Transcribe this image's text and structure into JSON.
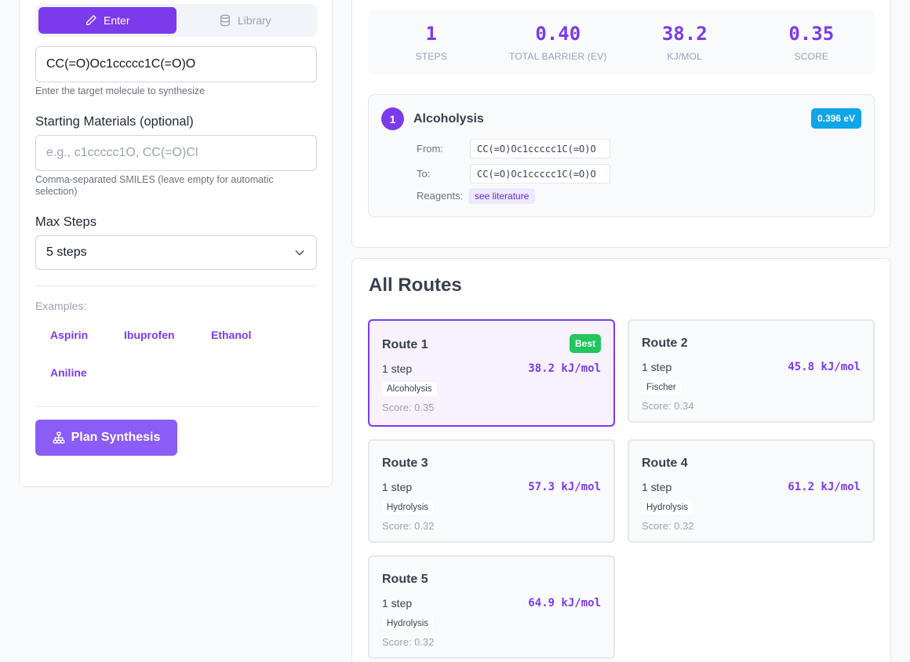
{
  "input_mode": {
    "enter_label": "Enter",
    "library_label": "Library"
  },
  "target": {
    "value": "CC(=O)Oc1ccccc1C(=O)O",
    "help": "Enter the target molecule to synthesize"
  },
  "starting": {
    "label": "Starting Materials (optional)",
    "placeholder": "e.g., c1ccccc1O, CC(=O)Cl",
    "help": "Comma-separated SMILES (leave empty for automatic selection)"
  },
  "max_steps": {
    "label": "Max Steps",
    "selected": "5 steps"
  },
  "examples": {
    "label": "Examples:",
    "items": [
      "Aspirin",
      "Ibuprofen",
      "Ethanol",
      "Aniline"
    ]
  },
  "plan_button": "Plan Synthesis",
  "summary": {
    "stats": [
      {
        "value": "1",
        "label": "STEPS"
      },
      {
        "value": "0.40",
        "label": "TOTAL BARRIER (EV)"
      },
      {
        "value": "38.2",
        "label": "KJ/MOL"
      },
      {
        "value": "0.35",
        "label": "SCORE"
      }
    ]
  },
  "step": {
    "number": "1",
    "name": "Alcoholysis",
    "energy": "0.396 eV",
    "from_label": "From:",
    "from_value": "CC(=O)Oc1ccccc1C(=O)O",
    "to_label": "To:",
    "to_value": "CC(=O)Oc1ccccc1C(=O)O",
    "reagents_label": "Reagents:",
    "reagents_value": "see literature"
  },
  "routes": {
    "title": "All Routes",
    "items": [
      {
        "name": "Route 1",
        "steps": "1 step",
        "energy": "38.2 kJ/mol",
        "tag": "Alcoholysis",
        "score": "Score: 0.35",
        "badge": "Best"
      },
      {
        "name": "Route 2",
        "steps": "1 step",
        "energy": "45.8 kJ/mol",
        "tag": "Fischer",
        "score": "Score: 0.34"
      },
      {
        "name": "Route 3",
        "steps": "1 step",
        "energy": "57.3 kJ/mol",
        "tag": "Hydrolysis",
        "score": "Score: 0.32"
      },
      {
        "name": "Route 4",
        "steps": "1 step",
        "energy": "61.2 kJ/mol",
        "tag": "Hydrolysis",
        "score": "Score: 0.32"
      },
      {
        "name": "Route 5",
        "steps": "1 step",
        "energy": "64.9 kJ/mol",
        "tag": "Hydrolysis",
        "score": "Score: 0.32"
      }
    ]
  },
  "icons": {
    "enter": "pencil-icon",
    "library": "database-icon",
    "dropdown": "chevron-down-icon",
    "plan": "sitemap-icon"
  }
}
